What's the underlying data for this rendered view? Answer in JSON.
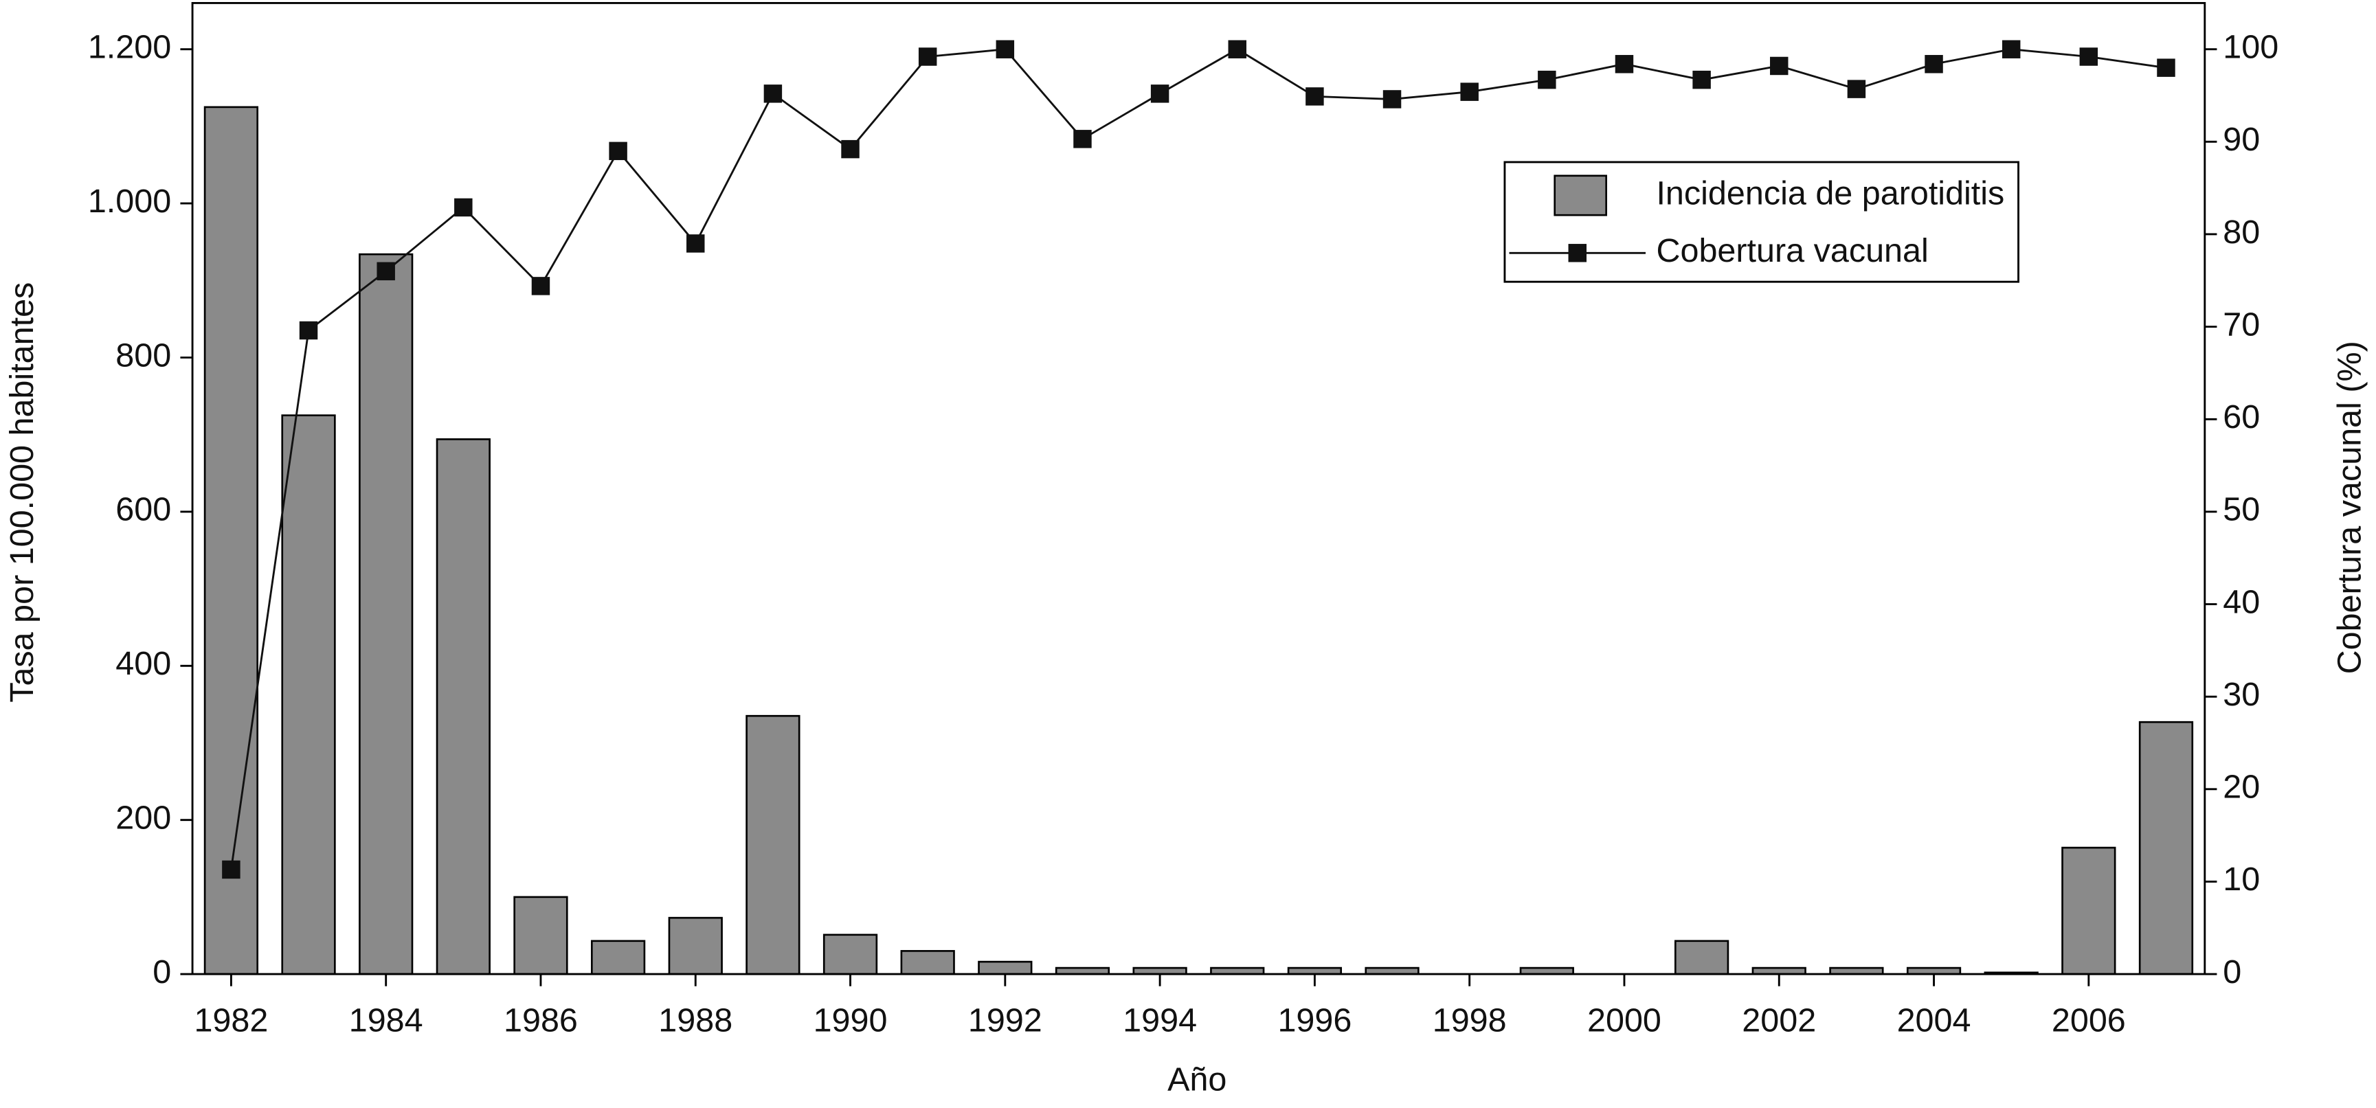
{
  "chart_data": {
    "type": "combo",
    "xlabel": "Año",
    "ylabel": "Tasa por 100.000 habitantes",
    "y2label": "Cobertura vacunal (%)",
    "x": [
      1982,
      1983,
      1984,
      1985,
      1986,
      1987,
      1988,
      1989,
      1990,
      1991,
      1992,
      1993,
      1994,
      1995,
      1996,
      1997,
      1998,
      1999,
      2000,
      2001,
      2002,
      2003,
      2004,
      2005,
      2006,
      2007
    ],
    "xlim": [
      1981.5,
      2007.5
    ],
    "xticks": [
      1982,
      1984,
      1986,
      1988,
      1990,
      1992,
      1994,
      1996,
      1998,
      2000,
      2002,
      2004,
      2006
    ],
    "ylim": [
      0,
      1260
    ],
    "yticks": [
      0,
      200,
      400,
      600,
      800,
      {
        "value": 1000,
        "label": "1.000"
      },
      {
        "value": 1200,
        "label": "1.200"
      }
    ],
    "y2lim": [
      0,
      105
    ],
    "y2ticks": [
      0,
      10,
      20,
      30,
      40,
      50,
      60,
      70,
      80,
      90,
      100
    ],
    "legend": "upper right",
    "series": [
      {
        "name": "Incidencia de parotiditis",
        "type": "bar",
        "color": "#8a8a8a",
        "values": [
          1125,
          725,
          934,
          694,
          100,
          43,
          73,
          335,
          51,
          30,
          16,
          8,
          8,
          8,
          8,
          8,
          0,
          8,
          0,
          43,
          8,
          8,
          8,
          2,
          164,
          327
        ]
      },
      {
        "name": "Cobertura vacunal",
        "type": "line",
        "axis": "y2",
        "color": "#111111",
        "values": [
          11.3,
          69.6,
          76,
          82.9,
          74.4,
          89,
          79,
          95.2,
          89.2,
          99.2,
          100,
          90.3,
          95.2,
          100,
          94.9,
          94.6,
          95.4,
          96.7,
          98.4,
          96.7,
          98.2,
          95.7,
          98.4,
          100,
          99.2,
          98
        ]
      }
    ]
  }
}
